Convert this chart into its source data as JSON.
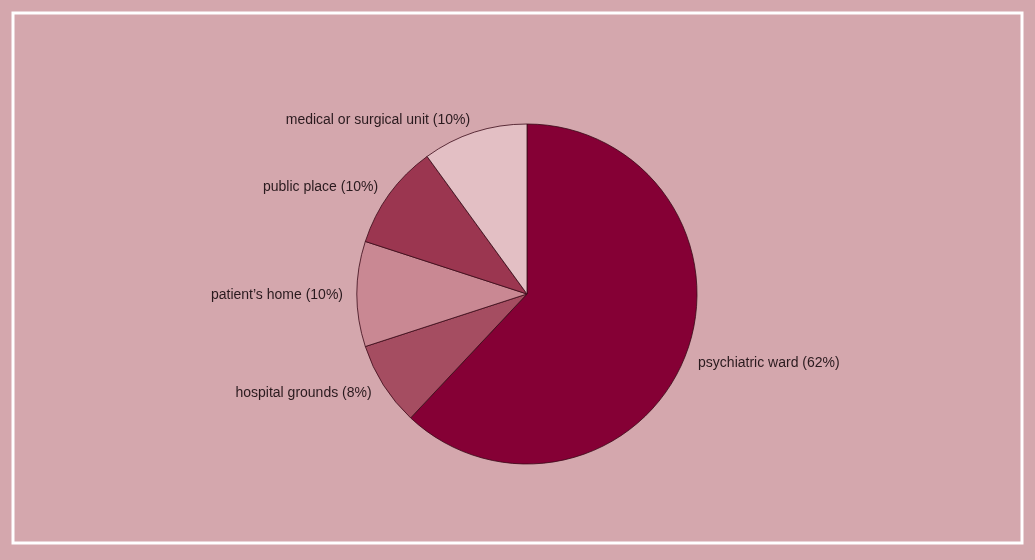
{
  "chart_data": {
    "type": "pie",
    "categories": [
      "psychiatric ward",
      "hospital grounds",
      "patient’s home",
      "public place",
      "medical or surgical unit"
    ],
    "values": [
      62,
      8,
      10,
      10,
      10
    ],
    "value_labels": [
      "(62%)",
      "(8%)",
      "(10%)",
      "(10%)",
      "(10%)"
    ],
    "colors": [
      "#850035",
      "#a54d61",
      "#c98893",
      "#9b3650",
      "#e3bfc4"
    ],
    "legend": false
  }
}
